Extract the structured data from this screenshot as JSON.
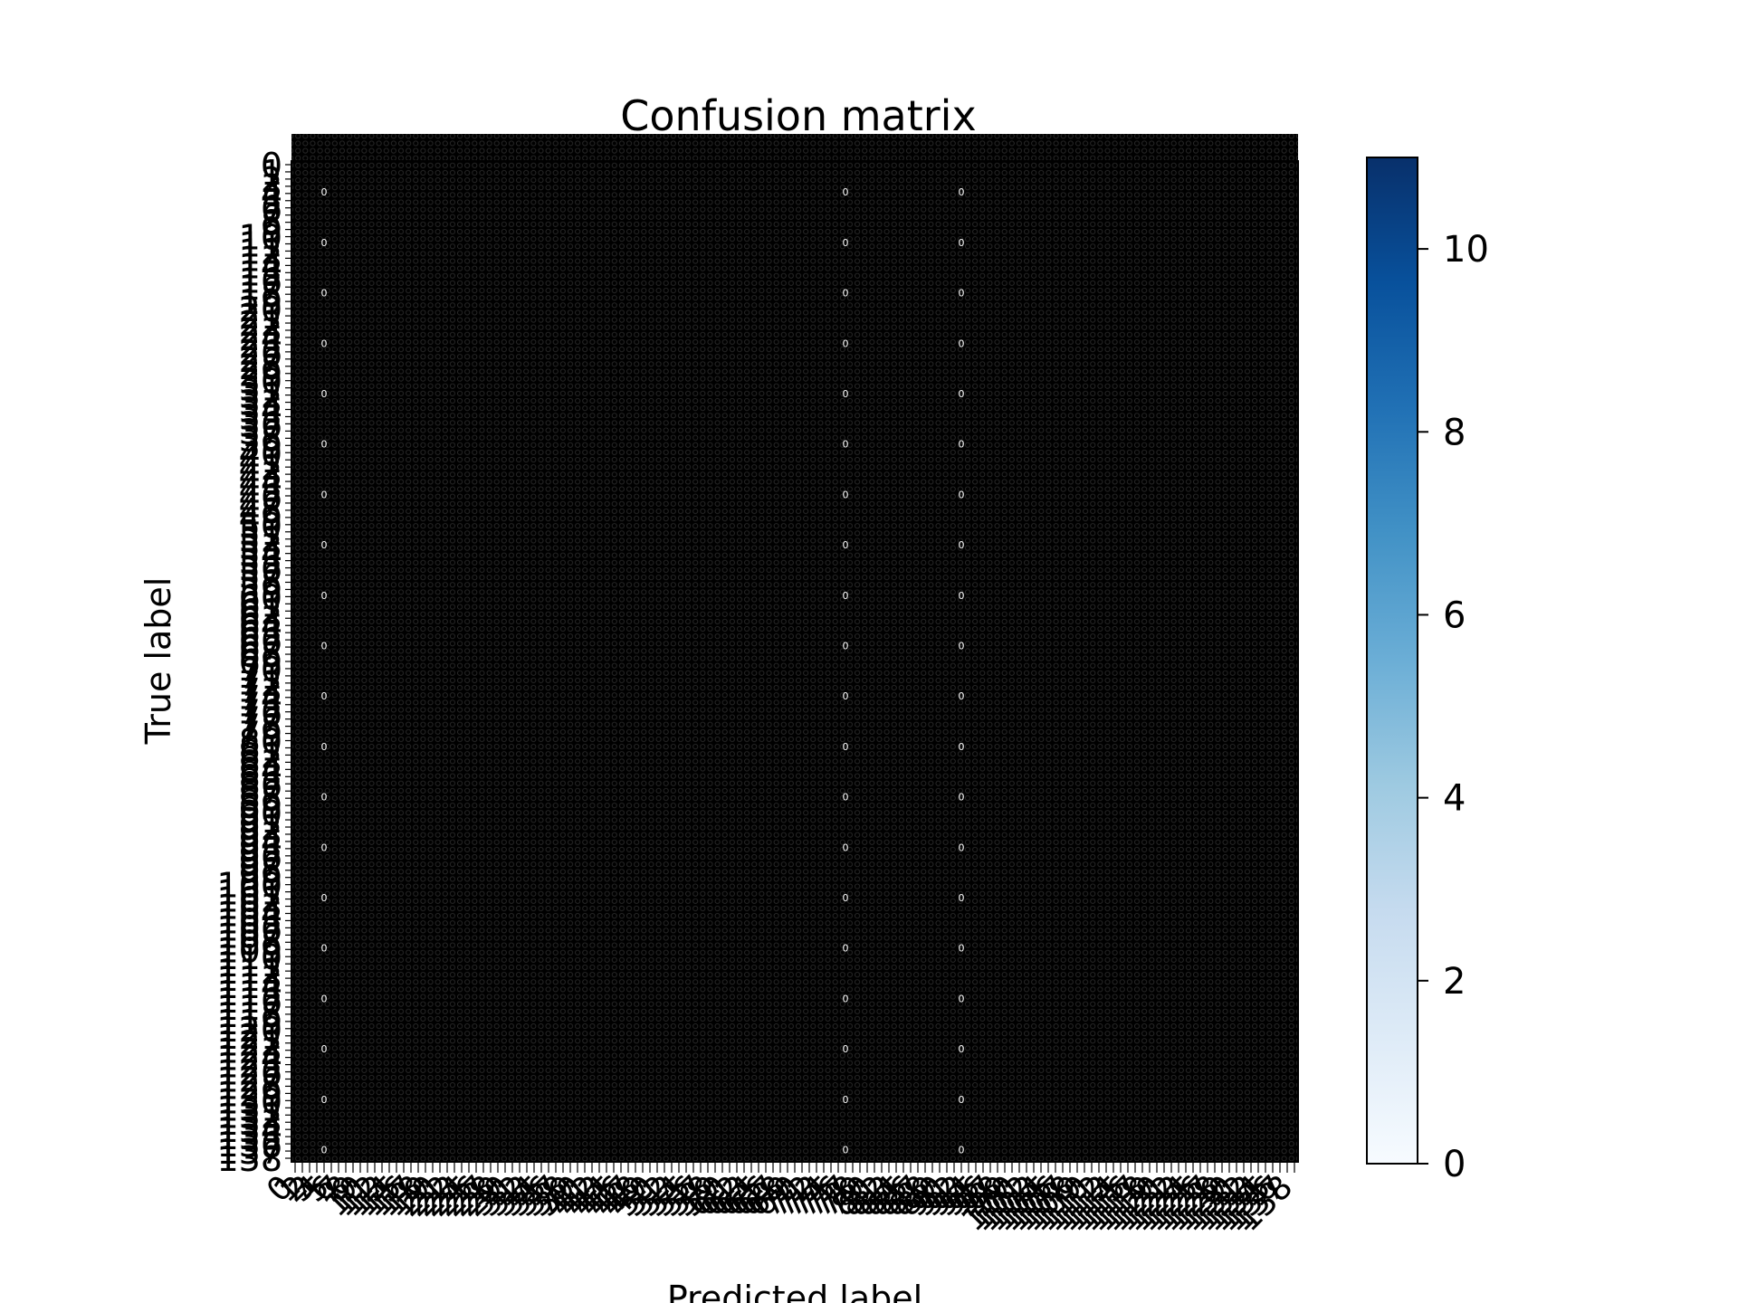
{
  "figure": {
    "background": "#ffffff"
  },
  "chart_data": {
    "type": "heatmap",
    "title": "Confusion matrix",
    "xlabel": "Predicted label",
    "ylabel": "True label",
    "n_classes": 139,
    "tick_labels": "0 through 138, one per class, drawn overlapping and illegible",
    "cell_text_fill": "#000000",
    "cell_text_mark": "0",
    "colormap": "Blues",
    "colorbar": {
      "range": [
        0,
        11
      ],
      "ticks": [
        0,
        2,
        4,
        6,
        8,
        10
      ],
      "tick_labels": [
        "0",
        "2",
        "4",
        "6",
        "8",
        "10"
      ],
      "colors": [
        "#f7fbff",
        "#deebf7",
        "#c6dbef",
        "#9ecae1",
        "#6baed6",
        "#4292c6",
        "#2171b5",
        "#08519c",
        "#08306b"
      ]
    },
    "highlighted_columns": [
      4,
      76,
      92
    ],
    "note_visible_white_marks": "Faint white numerals appear in columns 4, 76 and 92 (values partially legible, e.g. 1, 2, 6, 10)"
  }
}
